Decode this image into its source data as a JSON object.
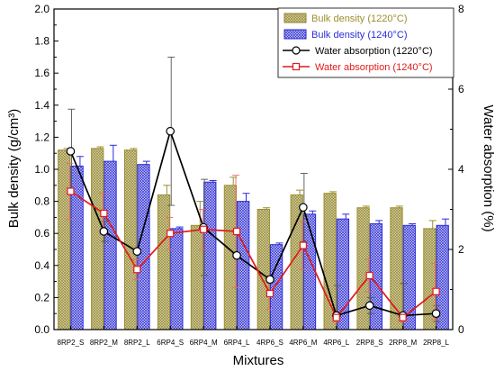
{
  "chart_data": {
    "type": "bar",
    "xlabel": "Mixtures",
    "ylabel_left": "Bulk density (g/cm³)",
    "ylabel_right": "Water absorption (%)",
    "ylim_left": [
      0,
      2.0
    ],
    "ylim_right": [
      0,
      8
    ],
    "yticks_left": [
      "0.0",
      "0.2",
      "0.4",
      "0.6",
      "0.8",
      "1.0",
      "1.2",
      "1.4",
      "1.6",
      "1.8",
      "2.0"
    ],
    "yticks_right": [
      "0",
      "2",
      "4",
      "6",
      "8"
    ],
    "categories": [
      "8RP2_S",
      "8RP2_M",
      "8RP2_L",
      "6RP4_S",
      "6RP4_M",
      "6RP4_L",
      "4RP6_S",
      "4RP6_M",
      "4RP6_L",
      "2RP8_S",
      "2RP8_M",
      "2RP8_L"
    ],
    "legend_position": "top-right",
    "grid": false,
    "bar_series": [
      {
        "name": "Bulk density (1220°C)",
        "color": "#9c8f2c",
        "fill": "#d2cca0",
        "values": [
          1.12,
          1.13,
          1.12,
          0.84,
          0.65,
          0.9,
          0.75,
          0.84,
          0.85,
          0.76,
          0.76,
          0.63
        ],
        "errors": [
          0.01,
          0.01,
          0.01,
          0.06,
          0.15,
          0.05,
          0.01,
          0.03,
          0.01,
          0.01,
          0.01,
          0.05
        ]
      },
      {
        "name": "Bulk density (1240°C)",
        "color": "#2b2bd9",
        "fill": "#b9b9f3",
        "values": [
          1.02,
          1.05,
          1.03,
          0.63,
          0.92,
          0.8,
          0.53,
          0.72,
          0.69,
          0.66,
          0.65,
          0.65
        ],
        "errors": [
          0.06,
          0.1,
          0.02,
          0.01,
          0.01,
          0.05,
          0.01,
          0.02,
          0.03,
          0.02,
          0.01,
          0.04
        ]
      }
    ],
    "line_series": [
      {
        "name": "Water absorption (1220°C)",
        "color": "#000000",
        "marker": "circle",
        "values": [
          4.45,
          2.45,
          1.95,
          4.95,
          2.55,
          1.85,
          1.25,
          3.05,
          0.35,
          0.6,
          0.35,
          0.4
        ],
        "errors": [
          1.05,
          0.25,
          0.05,
          1.85,
          1.2,
          0.05,
          0.05,
          0.85,
          0.75,
          0.2,
          0.8,
          0.2
        ]
      },
      {
        "name": "Water absorption (1240°C)",
        "color": "#e11a1a",
        "marker": "square",
        "values": [
          3.45,
          2.9,
          1.5,
          2.4,
          2.5,
          2.45,
          0.9,
          2.1,
          0.3,
          1.35,
          0.3,
          0.95
        ],
        "errors": [
          0.7,
          0.5,
          0.25,
          0.4,
          0.5,
          1.4,
          0.4,
          0.6,
          0.1,
          0.4,
          0.1,
          0.7
        ]
      }
    ]
  }
}
